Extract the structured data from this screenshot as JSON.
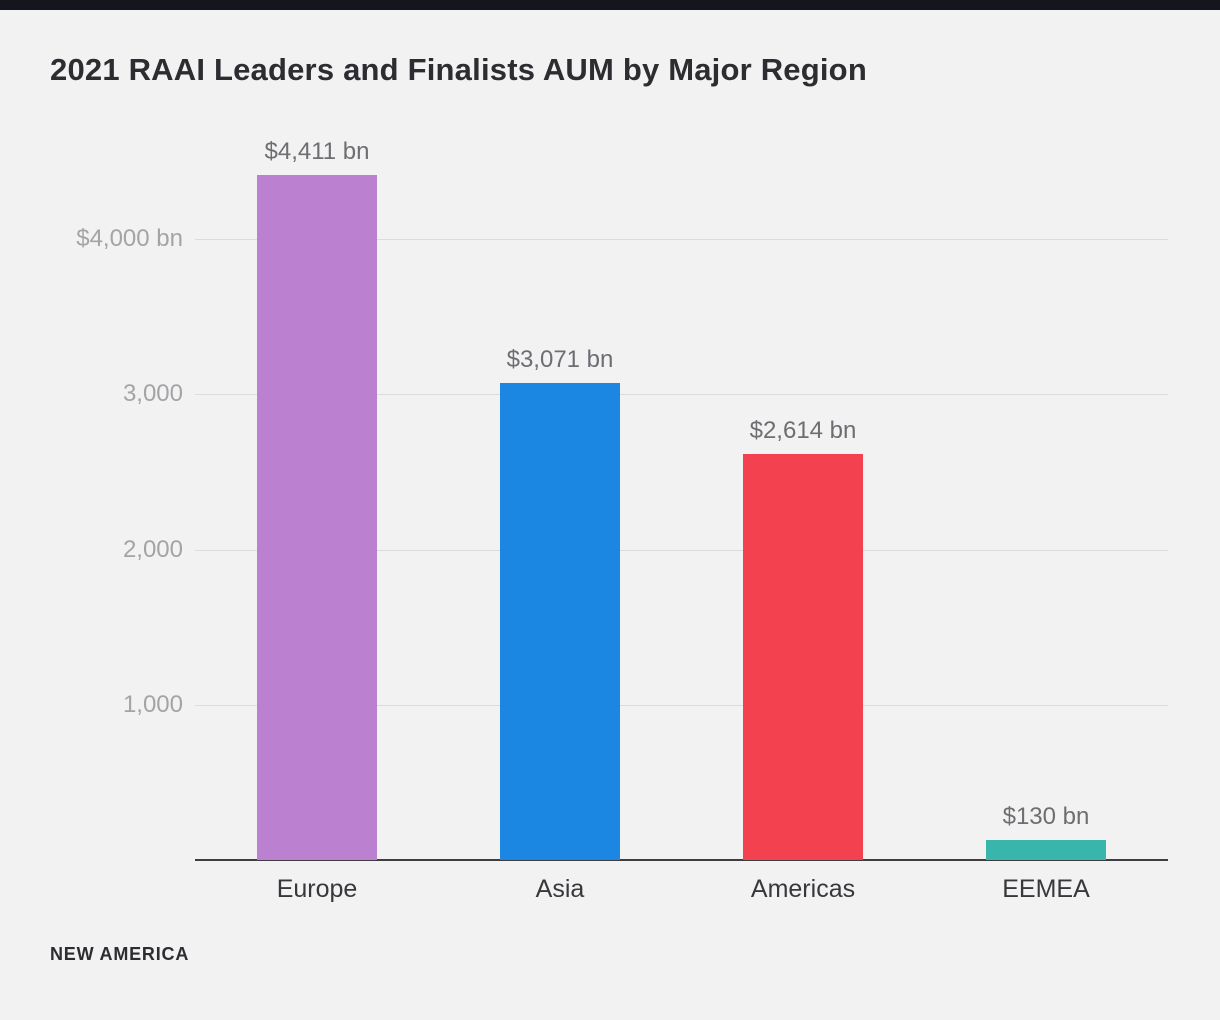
{
  "page": {
    "background": "#f2f2f3",
    "top_bar_color": "#15151d"
  },
  "source": "NEW AMERICA",
  "chart_data": {
    "type": "bar",
    "title": "2021 RAAI Leaders and Finalists AUM by Major Region",
    "categories": [
      "Europe",
      "Asia",
      "Americas",
      "EEMEA"
    ],
    "values": [
      4411,
      3071,
      2614,
      130
    ],
    "value_labels": [
      "$4,411 bn",
      "$3,071 bn",
      "$2,614 bn",
      "$130 bn"
    ],
    "bar_colors": [
      "#bc80d0",
      "#1b87e3",
      "#f4414f",
      "#38b6ab"
    ],
    "yticks": [
      {
        "value": 4000,
        "label": "$4,000 bn"
      },
      {
        "value": 3000,
        "label": "3,000"
      },
      {
        "value": 2000,
        "label": "2,000"
      },
      {
        "value": 1000,
        "label": "1,000"
      }
    ],
    "ylim": [
      0,
      4550
    ],
    "grid": true,
    "legend": false
  }
}
